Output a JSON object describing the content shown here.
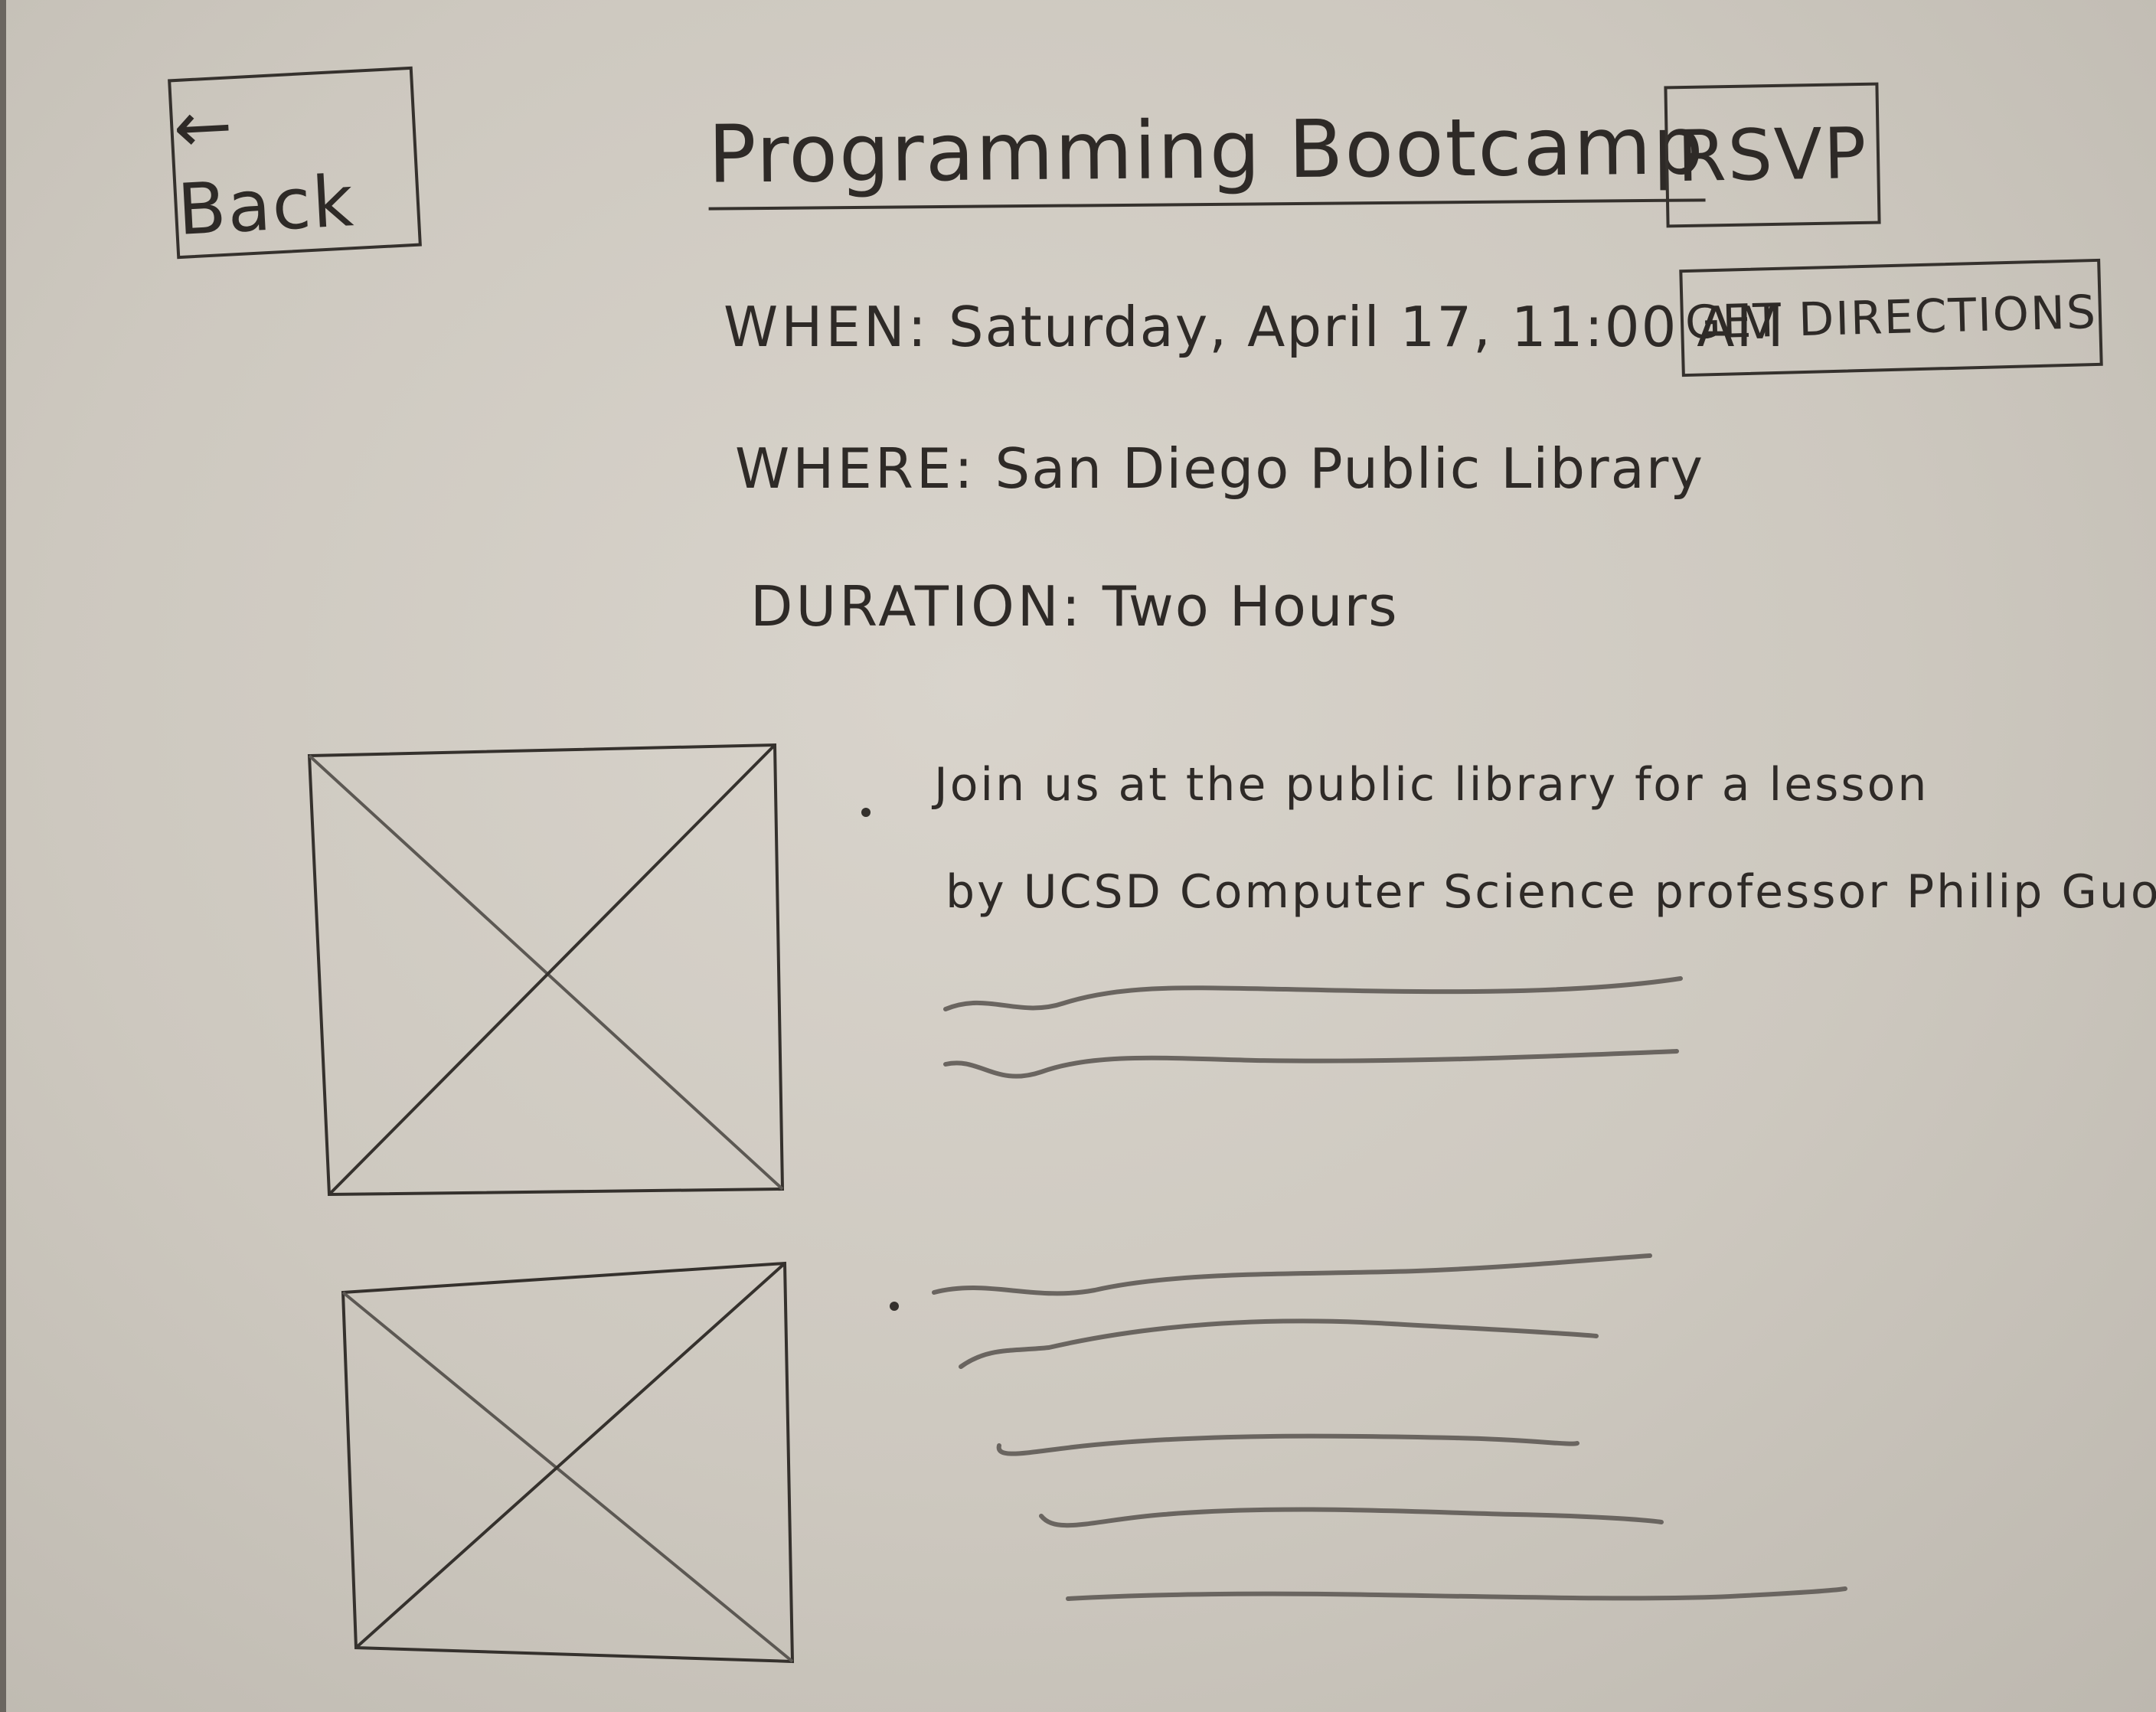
{
  "header": {
    "back_label": "← Back",
    "title": "Programming Bootcamp",
    "rsvp_label": "RSVP",
    "directions_label": "GET DIRECTIONS"
  },
  "event": {
    "when_label": "WHEN:",
    "when_value": "Saturday, April 17, 11:00 AM",
    "where_label": "WHERE:",
    "where_value": "San Diego Public Library",
    "duration_label": "DURATION:",
    "duration_value": "Two Hours"
  },
  "description": {
    "line1": "Join us at the public library for a lesson",
    "line2": "by UCSD Computer Science professor Philip Guo..."
  },
  "colors": {
    "ink": "#35312d",
    "pencil": "#5c5853",
    "paper": "#d4cfc7"
  }
}
